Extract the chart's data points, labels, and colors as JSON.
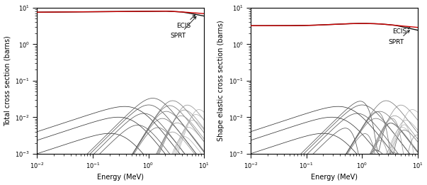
{
  "xlim": [
    0.01,
    10.0
  ],
  "ylim": [
    0.001,
    10.0
  ],
  "xlabel": "Energy (MeV)",
  "ylabel_left": "Total cross section (barns)",
  "ylabel_right": "Shape elastic cross section (barns)",
  "ecis_color": "#cc0000",
  "sprt_color": "#111111",
  "figsize": [
    6.03,
    2.61
  ],
  "dpi": 100,
  "annotation_fontsize": 6.5,
  "tick_fontsize": 6,
  "label_fontsize": 7
}
